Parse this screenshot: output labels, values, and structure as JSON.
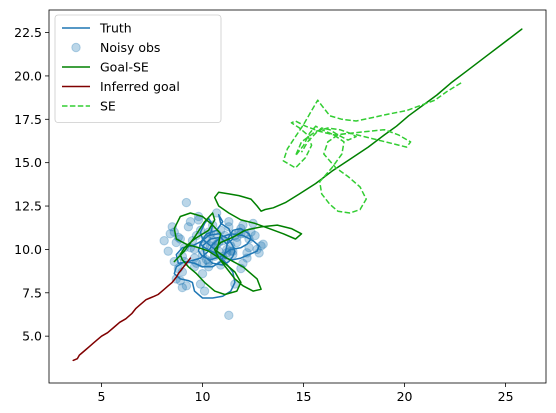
{
  "chart_data": {
    "type": "line",
    "title": "",
    "xlabel": "",
    "ylabel": "",
    "xlim": [
      2.4,
      27.0
    ],
    "ylim": [
      2.3,
      23.8
    ],
    "xticks": [
      5,
      10,
      15,
      20,
      25
    ],
    "yticks": [
      5.0,
      7.5,
      10.0,
      12.5,
      15.0,
      17.5,
      20.0,
      22.5
    ],
    "xtick_labels": [
      "5",
      "10",
      "15",
      "20",
      "25"
    ],
    "ytick_labels": [
      "5.0",
      "7.5",
      "10.0",
      "12.5",
      "15.0",
      "17.5",
      "20.0",
      "22.5"
    ],
    "grid": false,
    "legend_position": "top-left",
    "legend": [
      {
        "label": "Truth",
        "kind": "line",
        "color": "#1f77b4"
      },
      {
        "label": "Noisy obs",
        "kind": "scatter",
        "color": "#1f77b4"
      },
      {
        "label": "Goal-SE",
        "kind": "line",
        "color": "#008000"
      },
      {
        "label": "Inferred goal",
        "kind": "line",
        "color": "#800000"
      },
      {
        "label": "SE",
        "kind": "dashed",
        "color": "#32cd32"
      }
    ],
    "series": [
      {
        "name": "Truth",
        "kind": "line",
        "color": "#1f77b4",
        "x": [
          10.5,
          10.9,
          11.2,
          11.5,
          11.3,
          10.9,
          10.8,
          11.0,
          10.7,
          10.2,
          9.9,
          9.8,
          10.0,
          10.4,
          10.9,
          11.4,
          11.9,
          12.2,
          12.4,
          12.3,
          11.9,
          11.5,
          11.3,
          11.2,
          11.1,
          10.9,
          10.5,
          10.0,
          9.6,
          9.1,
          8.7,
          8.6,
          8.9,
          9.3,
          9.5,
          9.6,
          10.0,
          10.5,
          11.0,
          11.4,
          11.6,
          11.5,
          11.1,
          10.6,
          10.1,
          9.9,
          10.0,
          10.3,
          10.8,
          11.3,
          11.5,
          11.6,
          11.5,
          11.3,
          11.0,
          10.5,
          10.1,
          10.0,
          10.4,
          10.9,
          11.4,
          12.0,
          12.5,
          12.8,
          12.7,
          12.3,
          11.9,
          11.5,
          11.1,
          10.7,
          10.3,
          10.0,
          9.9,
          10.1,
          10.3,
          10.5,
          10.4,
          10.0,
          9.5,
          9.0,
          8.7,
          8.8,
          9.3,
          9.9,
          10.3,
          10.5
        ],
        "y": [
          10.3,
          10.7,
          10.3,
          10.6,
          11.2,
          11.5,
          12.0,
          11.6,
          11.1,
          10.9,
          10.4,
          9.9,
          9.6,
          9.4,
          9.6,
          10.0,
          10.1,
          10.3,
          10.6,
          10.9,
          11.2,
          11.1,
          10.7,
          10.2,
          9.7,
          9.3,
          9.0,
          9.0,
          9.2,
          9.3,
          9.0,
          8.6,
          8.3,
          8.2,
          8.1,
          7.6,
          7.2,
          7.2,
          7.3,
          7.6,
          8.1,
          8.7,
          9.3,
          9.8,
          10.1,
          10.3,
          10.5,
          10.8,
          10.9,
          10.6,
          10.2,
          9.9,
          9.6,
          9.3,
          9.1,
          9.2,
          9.6,
          10.2,
          10.6,
          10.7,
          10.9,
          10.8,
          10.5,
          10.2,
          9.9,
          9.7,
          9.5,
          9.4,
          9.5,
          9.9,
          10.3,
          10.6,
          11.0,
          11.5,
          11.8,
          11.4,
          10.9,
          10.5,
          10.2,
          10.1,
          9.7,
          9.2,
          9.3,
          9.5,
          9.9,
          10.3
        ]
      },
      {
        "name": "Noisy obs",
        "kind": "scatter",
        "color": "#1f77b4",
        "x": [
          9.2,
          11.3,
          8.5,
          8.3,
          8.1,
          8.6,
          8.8,
          8.9,
          9.0,
          9.1,
          9.4,
          9.6,
          9.7,
          9.8,
          9.9,
          10.0,
          10.1,
          10.2,
          10.3,
          10.4,
          10.5,
          10.6,
          10.7,
          10.8,
          10.9,
          11.0,
          11.1,
          11.2,
          11.3,
          11.5,
          11.6,
          11.7,
          11.9,
          12.0,
          12.1,
          12.3,
          12.4,
          12.6,
          12.8,
          13.0,
          8.8,
          9.3,
          9.6,
          10.0,
          10.4,
          10.7,
          11.0,
          11.4,
          11.8,
          12.2,
          12.5,
          8.7,
          9.0,
          9.5,
          9.9,
          10.2,
          10.6,
          11.1,
          11.5,
          11.9,
          12.3,
          12.7,
          8.4,
          9.2,
          9.8,
          10.3,
          10.8,
          11.3,
          11.7,
          12.2,
          12.9,
          8.9,
          9.7,
          10.5,
          11.2,
          12.0,
          8.6,
          9.1,
          10.1,
          10.9,
          11.6,
          9.4,
          10.0,
          10.7,
          11.9,
          9.0,
          10.3,
          11.4,
          8.7,
          9.6,
          10.6
        ],
        "y": [
          12.7,
          6.2,
          11.3,
          9.9,
          10.5,
          11.0,
          8.9,
          8.2,
          7.8,
          9.3,
          10.1,
          9.5,
          10.8,
          11.9,
          8.0,
          9.2,
          7.6,
          10.6,
          9.0,
          10.2,
          11.4,
          9.7,
          10.9,
          9.9,
          11.1,
          10.5,
          9.4,
          10.0,
          11.6,
          9.7,
          8.0,
          10.4,
          11.2,
          9.2,
          10.9,
          10.1,
          11.0,
          10.8,
          9.8,
          10.3,
          10.7,
          11.3,
          9.0,
          8.6,
          10.9,
          12.1,
          9.6,
          10.2,
          11.0,
          9.8,
          11.5,
          8.3,
          9.6,
          10.5,
          11.1,
          9.4,
          10.1,
          10.8,
          9.9,
          8.9,
          10.6,
          10.0,
          10.9,
          7.9,
          11.7,
          9.3,
          10.4,
          11.3,
          10.7,
          9.5,
          10.2,
          10.6,
          9.2,
          10.5,
          9.8,
          11.4,
          9.3,
          10.1,
          10.2,
          9.1,
          10.8,
          11.6,
          9.7,
          10.3,
          10.9,
          8.7,
          11.0,
          9.9,
          10.4,
          10.0,
          9.6
        ]
      },
      {
        "name": "Goal-SE",
        "kind": "line",
        "color": "#008000",
        "x": [
          25.8,
          24.9,
          24.0,
          23.1,
          22.3,
          21.6,
          20.9,
          20.2,
          19.6,
          19.0,
          18.2,
          17.3,
          16.4,
          15.6,
          14.8,
          14.1,
          13.5,
          13.1,
          12.9,
          12.7,
          12.4,
          12.1,
          11.8,
          11.3,
          10.8,
          10.6,
          10.8,
          11.3,
          11.9,
          12.6,
          13.3,
          14.0,
          14.6,
          14.9,
          14.4,
          13.7,
          12.9,
          12.1,
          11.5,
          10.9,
          10.6,
          10.8,
          11.2,
          11.6,
          12.0,
          12.5,
          12.9,
          12.7,
          12.0,
          11.2,
          10.7,
          10.8,
          10.9,
          10.5,
          10.0,
          9.4,
          8.9,
          8.6,
          8.7,
          9.2,
          9.8,
          10.3,
          10.7,
          11.1,
          11.6,
          11.9,
          11.7,
          11.1,
          10.6,
          10.1,
          9.7,
          9.3,
          9.0,
          8.9,
          9.1,
          9.6,
          10.3,
          10.6,
          10.5,
          10.1,
          9.6,
          9.1,
          8.6
        ],
        "y": [
          22.7,
          21.9,
          21.1,
          20.3,
          19.6,
          18.9,
          18.3,
          17.7,
          17.1,
          16.6,
          15.9,
          15.2,
          14.5,
          13.8,
          13.2,
          12.7,
          12.4,
          12.3,
          12.2,
          12.5,
          12.9,
          13.0,
          13.1,
          13.2,
          13.3,
          13.0,
          12.5,
          12.1,
          11.7,
          11.5,
          11.2,
          10.9,
          10.6,
          10.9,
          11.2,
          11.4,
          11.3,
          11.1,
          10.7,
          10.4,
          10.0,
          9.5,
          8.9,
          8.3,
          7.9,
          7.6,
          7.7,
          8.3,
          9.0,
          9.5,
          9.9,
          10.4,
          10.9,
          11.4,
          11.9,
          12.1,
          11.9,
          11.2,
          10.6,
          10.3,
          10.1,
          9.9,
          9.6,
          9.2,
          8.7,
          8.1,
          7.6,
          7.4,
          7.6,
          8.1,
          8.6,
          9.0,
          9.4,
          9.7,
          10.1,
          10.6,
          11.1,
          11.7,
          12.1,
          11.6,
          10.7,
          9.9,
          9.3
        ]
      },
      {
        "name": "Inferred goal",
        "kind": "line",
        "color": "#800000",
        "x": [
          3.6,
          3.8,
          3.9,
          4.0,
          4.2,
          4.4,
          4.6,
          4.8,
          5.0,
          5.3,
          5.6,
          5.9,
          6.2,
          6.5,
          6.7,
          6.9,
          7.2,
          7.4,
          7.6,
          7.8,
          7.9,
          8.1,
          8.3,
          8.5,
          8.7,
          8.8,
          9.0,
          9.2,
          9.4
        ],
        "y": [
          3.6,
          3.7,
          3.9,
          4.0,
          4.2,
          4.4,
          4.6,
          4.8,
          5.0,
          5.2,
          5.5,
          5.8,
          6.0,
          6.3,
          6.6,
          6.8,
          7.1,
          7.2,
          7.3,
          7.4,
          7.5,
          7.7,
          7.9,
          8.1,
          8.4,
          8.6,
          8.9,
          9.2,
          9.5
        ]
      },
      {
        "name": "SE",
        "kind": "dashed",
        "color": "#32cd32",
        "x": [
          22.8,
          22.1,
          21.5,
          20.8,
          20.1,
          19.2,
          18.4,
          17.6,
          16.9,
          16.3,
          15.9,
          15.7,
          15.4,
          15.0,
          14.6,
          14.2,
          14.0,
          14.6,
          15.1,
          15.4,
          15.2,
          14.8,
          14.4,
          14.6,
          15.1,
          15.8,
          16.5,
          17.3,
          18.2,
          19.0,
          19.7,
          20.3,
          20.1,
          19.4,
          18.7,
          18.0,
          17.3,
          16.7,
          16.2,
          16.0,
          16.6,
          17.2,
          17.8,
          18.1,
          17.8,
          17.3,
          16.7,
          16.3,
          15.9,
          15.8,
          16.4,
          16.9,
          17.0,
          16.5,
          15.9,
          15.6,
          15.3,
          15.0,
          14.6,
          14.9,
          15.6,
          16.2,
          16.8,
          17.3,
          17.6,
          17.2,
          16.7,
          16.3,
          15.9,
          15.6,
          15.2,
          14.9
        ],
        "y": [
          19.6,
          19.1,
          18.6,
          18.3,
          18.0,
          17.8,
          17.6,
          17.4,
          17.5,
          17.7,
          18.3,
          18.6,
          18.0,
          17.2,
          16.5,
          15.8,
          15.1,
          14.7,
          15.3,
          16.0,
          16.6,
          17.0,
          17.3,
          17.4,
          17.1,
          16.8,
          16.6,
          16.7,
          16.8,
          16.9,
          16.6,
          16.2,
          15.9,
          16.1,
          16.3,
          16.5,
          16.7,
          16.6,
          16.2,
          15.5,
          14.7,
          14.2,
          13.6,
          12.9,
          12.3,
          12.1,
          12.2,
          12.6,
          13.2,
          13.9,
          14.7,
          15.5,
          16.2,
          16.6,
          16.9,
          17.1,
          16.7,
          16.0,
          15.4,
          16.2,
          16.8,
          17.0,
          16.9,
          16.7,
          16.5,
          16.3,
          16.6,
          16.9,
          17.0,
          16.7,
          16.2,
          15.6
        ]
      }
    ]
  }
}
